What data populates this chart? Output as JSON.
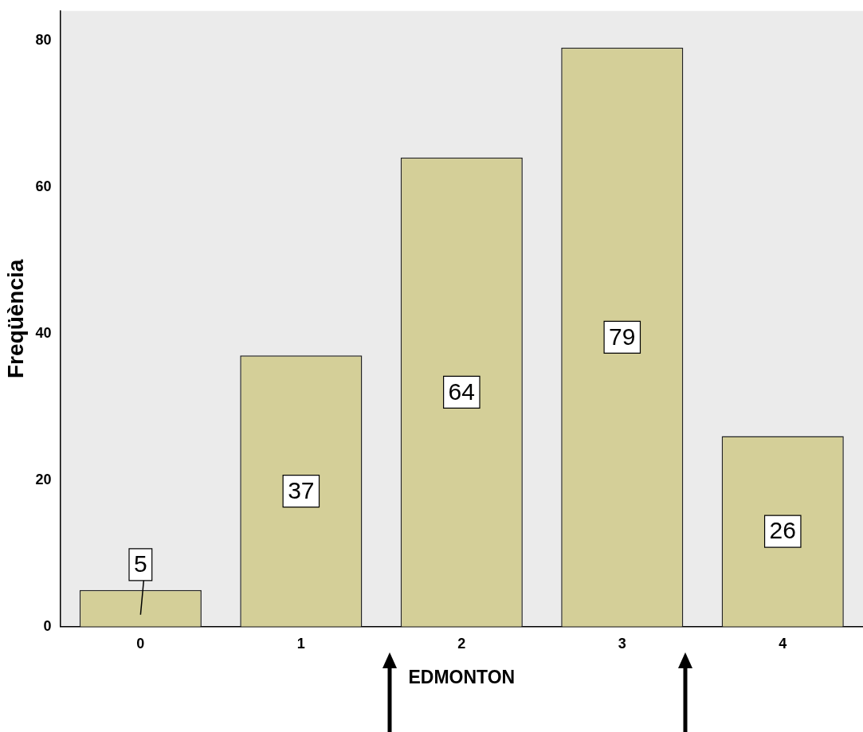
{
  "chart_data": {
    "type": "bar",
    "xlabel": "EDMONTON",
    "ylabel": "Freqüència",
    "categories": [
      "0",
      "1",
      "2",
      "3",
      "4"
    ],
    "values": [
      5,
      37,
      64,
      79,
      26
    ],
    "color": "#d4cf98",
    "ylim": [
      0,
      84
    ],
    "yticks": [
      0,
      20,
      40,
      60,
      80
    ],
    "grid": false,
    "legend": false,
    "data_labels": true
  }
}
